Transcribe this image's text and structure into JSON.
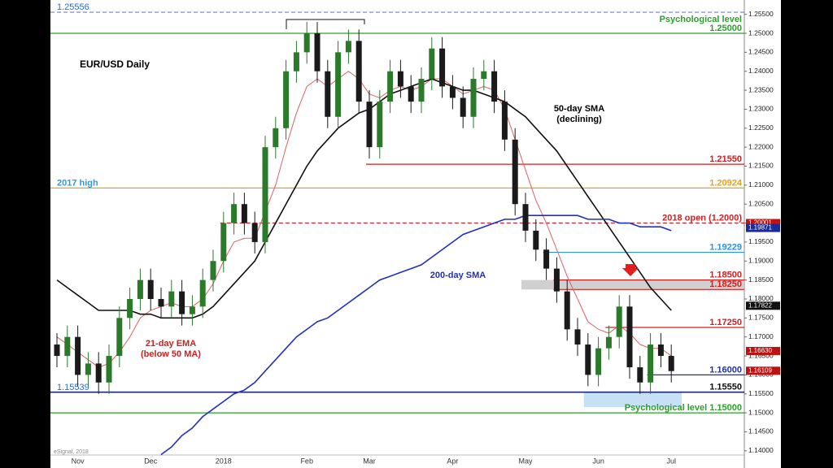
{
  "chart_data": {
    "type": "candlestick",
    "title": "EUR/USD Daily",
    "source": "eSignal, 2018",
    "categories": [
      null,
      null,
      "Nov",
      null,
      null,
      null,
      null,
      null,
      null,
      "Dec",
      null,
      null,
      null,
      null,
      null,
      null,
      "2018",
      null,
      null,
      null,
      null,
      null,
      null,
      null,
      "Feb",
      null,
      null,
      null,
      null,
      null,
      "Mar",
      null,
      null,
      null,
      null,
      null,
      null,
      null,
      "Apr",
      null,
      null,
      null,
      null,
      null,
      null,
      "May",
      null,
      null,
      null,
      null,
      null,
      null,
      "Jun",
      null,
      null,
      null,
      null,
      null,
      null,
      "Jul"
    ],
    "open": [
      1.168,
      1.165,
      1.17,
      1.16,
      1.163,
      1.158,
      1.165,
      1.175,
      1.18,
      1.185,
      1.18,
      1.178,
      1.182,
      1.176,
      1.178,
      1.185,
      1.19,
      1.2,
      1.205,
      1.2,
      1.195,
      1.22,
      1.225,
      1.24,
      1.245,
      1.25,
      1.24,
      1.228,
      1.245,
      1.248,
      1.232,
      1.22,
      1.232,
      1.24,
      1.236,
      1.232,
      1.238,
      1.246,
      1.236,
      1.233,
      1.228,
      1.238,
      1.24,
      1.232,
      1.222,
      1.205,
      1.198,
      1.193,
      1.188,
      1.182,
      1.172,
      1.168,
      1.16,
      1.167,
      1.17,
      1.178,
      1.162,
      1.158,
      1.168,
      1.165
    ],
    "high": [
      1.171,
      1.173,
      1.173,
      1.166,
      1.166,
      1.168,
      1.178,
      1.183,
      1.188,
      1.188,
      1.183,
      1.185,
      1.185,
      1.181,
      1.188,
      1.193,
      1.203,
      1.208,
      1.208,
      1.203,
      1.223,
      1.228,
      1.243,
      1.248,
      1.253,
      1.253,
      1.243,
      1.248,
      1.251,
      1.251,
      1.235,
      1.235,
      1.243,
      1.243,
      1.239,
      1.241,
      1.249,
      1.249,
      1.239,
      1.236,
      1.241,
      1.243,
      1.243,
      1.235,
      1.225,
      1.208,
      1.201,
      1.196,
      1.191,
      1.185,
      1.175,
      1.171,
      1.17,
      1.173,
      1.181,
      1.181,
      1.165,
      1.171,
      1.171,
      1.168
    ],
    "low": [
      1.162,
      1.162,
      1.157,
      1.157,
      1.155,
      1.155,
      1.162,
      1.172,
      1.177,
      1.177,
      1.175,
      1.175,
      1.173,
      1.173,
      1.175,
      1.182,
      1.187,
      1.197,
      1.197,
      1.192,
      1.192,
      1.217,
      1.222,
      1.237,
      1.242,
      1.237,
      1.225,
      1.225,
      1.242,
      1.229,
      1.217,
      1.217,
      1.229,
      1.233,
      1.229,
      1.229,
      1.235,
      1.233,
      1.23,
      1.225,
      1.225,
      1.235,
      1.229,
      1.219,
      1.202,
      1.195,
      1.19,
      1.185,
      1.179,
      1.169,
      1.165,
      1.157,
      1.157,
      1.164,
      1.167,
      1.159,
      1.155,
      1.155,
      1.162,
      1.158
    ],
    "close": [
      1.165,
      1.17,
      1.16,
      1.163,
      1.158,
      1.165,
      1.175,
      1.18,
      1.185,
      1.18,
      1.178,
      1.182,
      1.176,
      1.178,
      1.185,
      1.19,
      1.2,
      1.205,
      1.2,
      1.195,
      1.22,
      1.225,
      1.24,
      1.245,
      1.25,
      1.24,
      1.228,
      1.245,
      1.248,
      1.232,
      1.22,
      1.232,
      1.24,
      1.236,
      1.232,
      1.238,
      1.246,
      1.236,
      1.233,
      1.228,
      1.238,
      1.24,
      1.232,
      1.222,
      1.205,
      1.198,
      1.193,
      1.188,
      1.182,
      1.172,
      1.168,
      1.16,
      1.167,
      1.17,
      1.178,
      1.162,
      1.158,
      1.168,
      1.165,
      1.161
    ],
    "up_color": "#2a7a2a",
    "down_color": "#1a1a1a",
    "series": [
      {
        "color": "#e06060",
        "values": [
          1.17,
          1.168,
          1.166,
          1.164,
          1.162,
          1.163,
          1.166,
          1.17,
          1.175,
          1.177,
          1.178,
          1.179,
          1.178,
          1.178,
          1.18,
          1.184,
          1.19,
          1.195,
          1.196,
          1.196,
          1.203,
          1.21,
          1.22,
          1.229,
          1.236,
          1.238,
          1.236,
          1.238,
          1.24,
          1.238,
          1.234,
          1.233,
          1.235,
          1.236,
          1.235,
          1.236,
          1.238,
          1.238,
          1.236,
          1.234,
          1.235,
          1.236,
          1.235,
          1.23,
          1.222,
          1.214,
          1.206,
          1.2,
          1.193,
          1.186,
          1.18,
          1.174,
          1.172,
          1.171,
          1.173,
          1.171,
          1.168,
          1.167,
          1.167,
          1.165
        ]
      },
      {
        "color": "#111111",
        "values": [
          1.185,
          1.183,
          1.181,
          1.179,
          1.177,
          1.177,
          1.177,
          1.177,
          1.176,
          1.176,
          1.175,
          1.175,
          1.175,
          1.175,
          1.176,
          1.178,
          1.181,
          1.184,
          1.187,
          1.19,
          1.195,
          1.2,
          1.205,
          1.21,
          1.215,
          1.219,
          1.222,
          1.225,
          1.227,
          1.229,
          1.23,
          1.232,
          1.234,
          1.235,
          1.236,
          1.237,
          1.238,
          1.237,
          1.236,
          1.235,
          1.235,
          1.234,
          1.233,
          1.232,
          1.23,
          1.228,
          1.225,
          1.222,
          1.219,
          1.215,
          1.211,
          1.207,
          1.203,
          1.199,
          1.195,
          1.191,
          1.187,
          1.183,
          1.18,
          1.177
        ]
      },
      {
        "color": "#2030c0",
        "values": [
          null,
          null,
          null,
          null,
          null,
          null,
          null,
          null,
          null,
          null,
          1.139,
          1.141,
          1.144,
          1.146,
          1.149,
          1.151,
          1.153,
          1.155,
          1.156,
          1.158,
          1.161,
          1.164,
          1.167,
          1.17,
          1.172,
          1.174,
          1.175,
          1.177,
          1.179,
          1.181,
          1.183,
          1.185,
          1.186,
          1.187,
          1.188,
          1.189,
          1.191,
          1.193,
          1.195,
          1.197,
          1.198,
          1.199,
          1.2,
          1.201,
          1.201,
          1.202,
          1.202,
          1.202,
          1.202,
          1.202,
          1.202,
          1.201,
          1.201,
          1.201,
          1.2,
          1.2,
          1.199,
          1.199,
          1.199,
          1.198
        ]
      }
    ],
    "annotations": {
      "sma50": [
        "50-day SMA",
        "(declining)"
      ],
      "sma200": "200-day SMA",
      "ema21": [
        "21-day EMA",
        "(below 50 MA)"
      ]
    },
    "levels": [
      {
        "value": 1.25556,
        "label": "1.25556",
        "label_side": "left",
        "color": "#6a7fd0",
        "dashed": true
      },
      {
        "value": 1.25,
        "name": "Psychological level",
        "label": "1.25000",
        "color": "#2e9e2e"
      },
      {
        "value": 1.2155,
        "label": "1.21550",
        "color": "#d02020",
        "from": 30
      },
      {
        "value": 1.20924,
        "name": "2017 high",
        "name_side": "left",
        "label": "1.20924",
        "color": "#e8a020"
      },
      {
        "value": 1.20001,
        "label": "2018 open (1.2000)",
        "color": "#d02020",
        "dashed": true,
        "from": 16
      },
      {
        "value": 1.19229,
        "label": "1.19229",
        "color": "#3090e0",
        "from": 47
      },
      {
        "value": 1.185,
        "label": "1.18500",
        "color": "#d02020",
        "from": 48
      },
      {
        "value": 1.1825,
        "label": "1.18250",
        "color": "#d02020",
        "from": 48
      },
      {
        "value": 1.1725,
        "label": "1.17250",
        "color": "#d02020",
        "from": 53
      },
      {
        "value": 1.16,
        "label": "1.16000",
        "color": "#2030a0",
        "from": 57
      },
      {
        "value": 1.1555,
        "label": "1.15550",
        "color": "#111111"
      },
      {
        "value": 1.15539,
        "label": "1.15539",
        "label_side": "left",
        "color": "#2030a0"
      },
      {
        "value": 1.15,
        "label": "Psychological level 1.15000",
        "color": "#2e9e2e"
      }
    ],
    "zones": [
      {
        "from": 45,
        "low": 1.1825,
        "high": 1.185,
        "color": "#c8c8c8"
      },
      {
        "from": 51,
        "to": 60,
        "low": 1.1515,
        "high": 1.1555,
        "color": "#bcdcf4"
      }
    ],
    "price_tags": [
      {
        "value": 1.20001,
        "label": "1.20001",
        "color": "#c01010"
      },
      {
        "value": 1.19871,
        "label": "1.19871",
        "color": "#1a2a9a"
      },
      {
        "value": 1.17822,
        "label": "1.17822",
        "color": "#111111"
      },
      {
        "value": 1.1663,
        "label": "1.16630",
        "color": "#c01010"
      },
      {
        "value": 1.16109,
        "label": "1.16109",
        "color": "#c01010"
      }
    ],
    "ylim": [
      1.13889,
      1.25878
    ],
    "yticks": [
      {
        "value": 1.14,
        "label": "1.14000"
      },
      {
        "value": 1.145,
        "label": "1.14500"
      },
      {
        "value": 1.15,
        "label": "1.15000"
      },
      {
        "value": 1.155,
        "label": "1.15500"
      },
      {
        "value": 1.16,
        "label": "1.16000"
      },
      {
        "value": 1.165,
        "label": "1.16500"
      },
      {
        "value": 1.17,
        "label": "1.17000"
      },
      {
        "value": 1.175,
        "label": "1.17500"
      },
      {
        "value": 1.18,
        "label": "1.18000"
      },
      {
        "value": 1.185,
        "label": "1.18500"
      },
      {
        "value": 1.19,
        "label": "1.19000"
      },
      {
        "value": 1.195,
        "label": "1.19500"
      },
      {
        "value": 1.2,
        "label": "1.20000"
      },
      {
        "value": 1.205,
        "label": "1.20500"
      },
      {
        "value": 1.21,
        "label": "1.21000"
      },
      {
        "value": 1.215,
        "label": "1.21500"
      },
      {
        "value": 1.22,
        "label": "1.22000"
      },
      {
        "value": 1.225,
        "label": "1.22500"
      },
      {
        "value": 1.23,
        "label": "1.23000"
      },
      {
        "value": 1.235,
        "label": "1.23500"
      },
      {
        "value": 1.24,
        "label": "1.24000"
      },
      {
        "value": 1.245,
        "label": "1.24500"
      },
      {
        "value": 1.25,
        "label": "1.25000"
      },
      {
        "value": 1.255,
        "label": "1.25500"
      }
    ]
  }
}
